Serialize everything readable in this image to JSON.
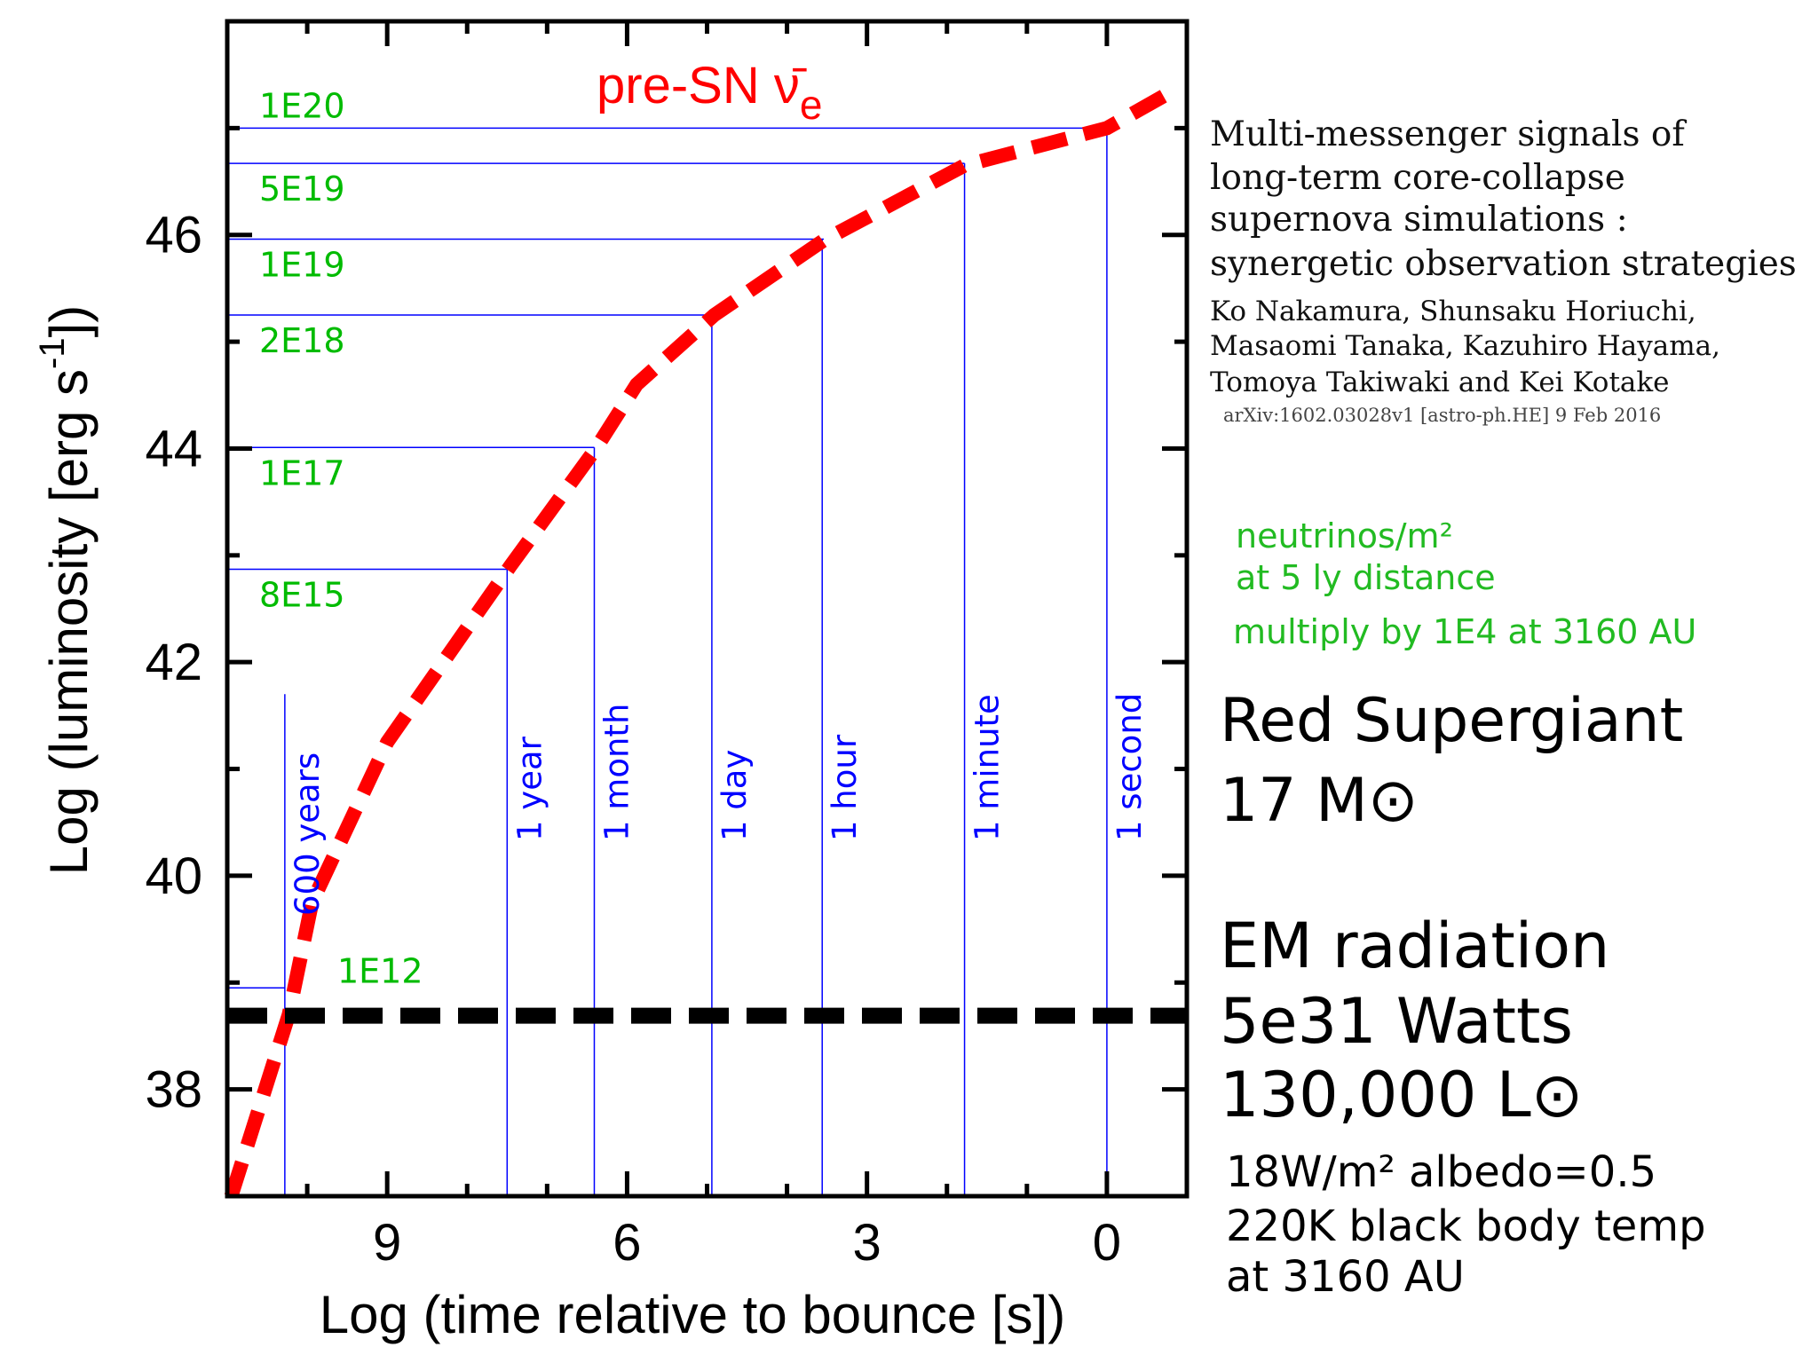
{
  "chart_data": {
    "type": "line",
    "title_main": "pre-SN ",
    "title_nu": "ν̄",
    "title_sub": "e",
    "xlabel": "Log (time relative  to bounce [s])",
    "ylabel_main": "Log (luminosity [erg s",
    "ylabel_sup": "-1",
    "ylabel_end": "])",
    "xlim": [
      11,
      -1
    ],
    "ylim": [
      37,
      48
    ],
    "xticks": [
      "9",
      "6",
      "3",
      "0"
    ],
    "xtick_values": [
      9,
      6,
      3,
      0
    ],
    "yticks": [
      "38",
      "40",
      "42",
      "44",
      "46"
    ],
    "ytick_values": [
      38,
      40,
      42,
      44,
      46
    ],
    "series": [
      {
        "name": "pre-SN anti-electron neutrino luminosity",
        "color": "#ff0000",
        "style": "dashed",
        "x": [
          10.95,
          10.23,
          9.94,
          9.0,
          7.46,
          6.39,
          5.88,
          4.91,
          3.54,
          1.78,
          0.0,
          -0.71
        ],
        "y": [
          37.0,
          38.7,
          39.75,
          41.25,
          42.9,
          44.0,
          44.6,
          45.25,
          45.95,
          46.65,
          47.0,
          47.3
        ]
      },
      {
        "name": "EM radiation luminosity",
        "color": "#000000",
        "style": "dashed",
        "y_constant": 38.69
      }
    ],
    "flux_levels": [
      {
        "label": "1E20",
        "y": 47.0,
        "x_end": 0.0
      },
      {
        "label": "5E19",
        "y": 46.67,
        "x_end": 1.78
      },
      {
        "label": "1E19",
        "y": 45.96,
        "x_end": 3.54
      },
      {
        "label": "2E18",
        "y": 45.25,
        "x_end": 4.94
      },
      {
        "label": "1E17",
        "y": 44.01,
        "x_end": 6.41
      },
      {
        "label": "8E15",
        "y": 42.87,
        "x_end": 7.5
      },
      {
        "label": "1E12",
        "y": 38.95,
        "x_end": 10.28
      }
    ],
    "time_markers": [
      {
        "label": "600 years",
        "x": 10.28,
        "y_top": 41.7
      },
      {
        "label": "1 year",
        "x": 7.5,
        "y_top": 42.87
      },
      {
        "label": "1 month",
        "x": 6.41,
        "y_top": 44.01
      },
      {
        "label": "1 day",
        "x": 4.94,
        "y_top": 45.25
      },
      {
        "label": "1 hour",
        "x": 3.56,
        "y_top": 45.96
      },
      {
        "label": "1 minute",
        "x": 1.78,
        "y_top": 46.67
      },
      {
        "label": "1 second",
        "x": 0.0,
        "y_top": 47.0
      }
    ]
  },
  "paper": {
    "title_lines": [
      "Multi-messenger signals of",
      "long-term core-collapse",
      "supernova simulations :",
      "synergetic observation strategies"
    ],
    "author_lines": [
      "Ko Nakamura, Shunsaku Horiuchi,",
      "Masaomi Tanaka, Kazuhiro Hayama,",
      "Tomoya Takiwaki and Kei Kotake"
    ],
    "arxiv": "arXiv:1602.03028v1  [astro-ph.HE]  9 Feb 2016"
  },
  "notes": {
    "flux_unit": "neutrinos/m²",
    "distance": "at 5 ly distance",
    "multiply": "multiply by 1E4 at 3160 AU",
    "star_type": "Red Supergiant",
    "star_mass": "17 M⊙",
    "em_title": "EM radiation",
    "em_watts": "5e31 Watts",
    "em_lsun": "130,000 L⊙",
    "albedo": "18W/m² albedo=0.5",
    "temp": "220K black body temp",
    "at_distance": "at 3160 AU"
  },
  "colors": {
    "curve": "#ff0000",
    "guides": "#0000ff",
    "labels": "#00bb00",
    "em": "#000000"
  }
}
